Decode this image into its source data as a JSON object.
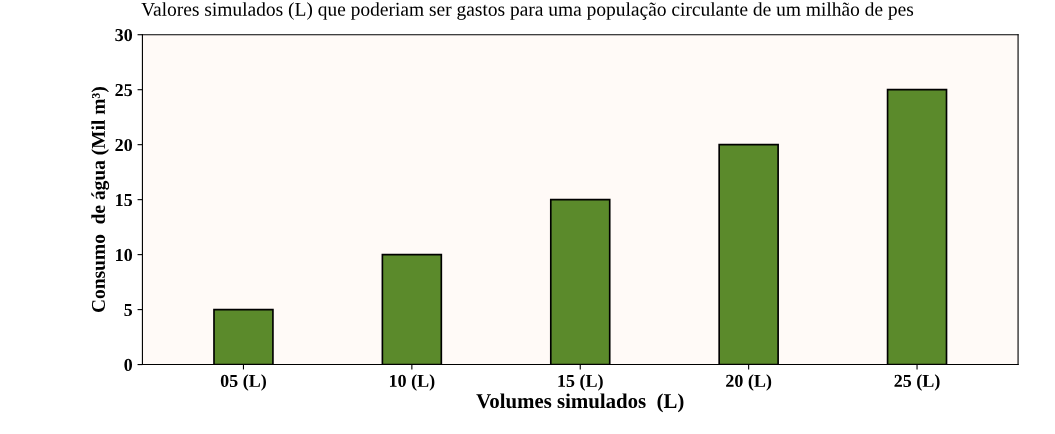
{
  "chart_data": {
    "type": "bar",
    "title": "Valores simulados (L) que poderiam ser gastos para uma população circulante de um milhão de pes",
    "categories": [
      "05 (L)",
      "10 (L)",
      "15 (L)",
      "20 (L)",
      "25 (L)"
    ],
    "values": [
      5,
      10,
      15,
      20,
      25
    ],
    "color": "#5b8a2b",
    "xlabel": "Volumes simulados  (L)",
    "ylabel": "Consumo  de água (Mil m³)",
    "ylim": [
      0,
      30
    ],
    "yticks": [
      0,
      5,
      10,
      15,
      20,
      25,
      30
    ],
    "grid": false,
    "legend": false
  }
}
